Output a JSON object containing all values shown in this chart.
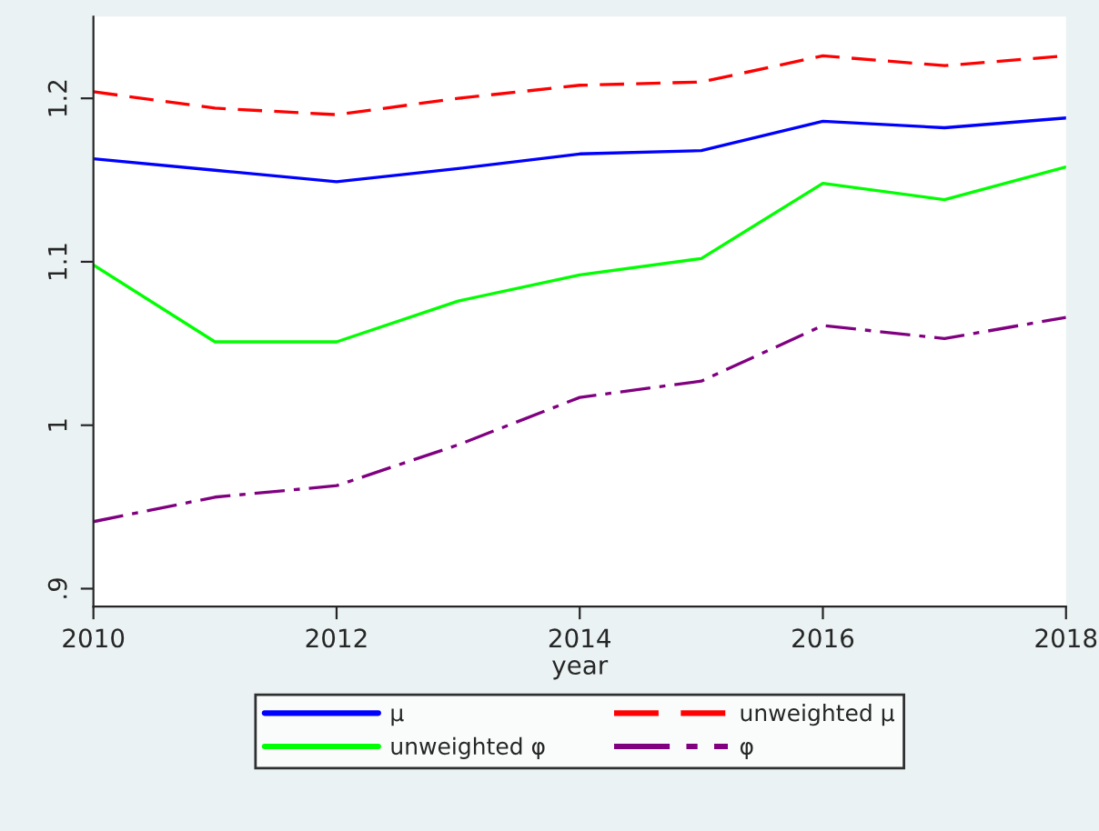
{
  "chart_data": {
    "type": "line",
    "xlabel": "year",
    "x": [
      2010,
      2011,
      2012,
      2013,
      2014,
      2015,
      2016,
      2017,
      2018
    ],
    "series": [
      {
        "name": "μ",
        "color": "#0000ff",
        "line_style": "solid",
        "values": [
          1.163,
          1.156,
          1.149,
          1.157,
          1.166,
          1.168,
          1.186,
          1.182,
          1.188
        ]
      },
      {
        "name": "unweighted μ",
        "color": "#ff0000",
        "line_style": "dashed",
        "values": [
          1.204,
          1.194,
          1.19,
          1.2,
          1.208,
          1.21,
          1.226,
          1.22,
          1.226
        ]
      },
      {
        "name": "unweighted φ",
        "color": "#00ff00",
        "line_style": "solid",
        "values": [
          1.098,
          1.051,
          1.051,
          1.076,
          1.092,
          1.102,
          1.148,
          1.138,
          1.158
        ]
      },
      {
        "name": "φ",
        "color": "#800080",
        "line_style": "dashdot",
        "values": [
          0.941,
          0.956,
          0.963,
          0.988,
          1.017,
          1.027,
          1.061,
          1.053,
          1.066
        ]
      }
    ],
    "xlim": [
      2010,
      2018
    ],
    "xticks": [
      2010,
      2012,
      2014,
      2016,
      2018
    ],
    "ylim": [
      0.889,
      1.25
    ],
    "yticks": [
      {
        "value": 0.9,
        "label": ".9"
      },
      1,
      1.1,
      1.2
    ],
    "grid": false,
    "legend": "bottom"
  }
}
